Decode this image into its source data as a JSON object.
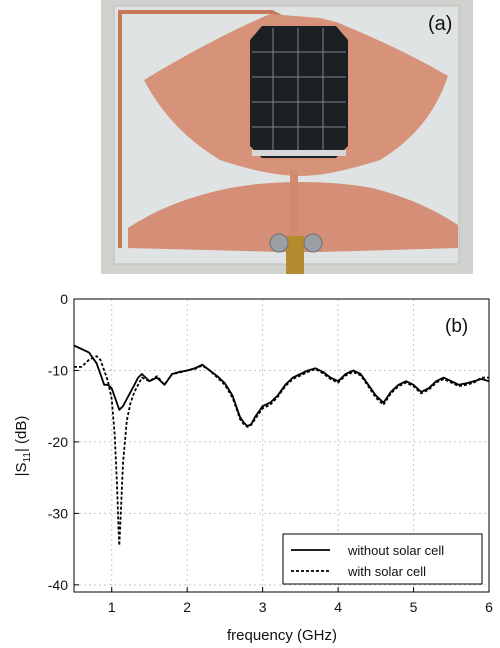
{
  "photo_panel": {
    "label": "(a)"
  },
  "chart_data": {
    "type": "line",
    "panel_label": "(b)",
    "xlabel": "frequency (GHz)",
    "ylabel": "|S",
    "ylabel_sub": "11",
    "ylabel_tail": "| (dB)",
    "xlim": [
      0.5,
      6
    ],
    "ylim": [
      -41,
      0
    ],
    "xticks": [
      1,
      2,
      3,
      4,
      5,
      6
    ],
    "yticks": [
      0,
      -10,
      -20,
      -30,
      -40
    ],
    "grid": true,
    "legend_position": "bottom-right",
    "series": [
      {
        "name": "without solar cell",
        "style": "solid",
        "x": [
          0.5,
          0.6,
          0.7,
          0.8,
          0.85,
          0.9,
          0.95,
          1.0,
          1.05,
          1.1,
          1.15,
          1.2,
          1.25,
          1.3,
          1.35,
          1.4,
          1.5,
          1.6,
          1.7,
          1.8,
          1.9,
          2.0,
          2.1,
          2.2,
          2.3,
          2.4,
          2.5,
          2.6,
          2.65,
          2.7,
          2.75,
          2.8,
          2.85,
          2.9,
          3.0,
          3.1,
          3.2,
          3.3,
          3.4,
          3.5,
          3.6,
          3.7,
          3.8,
          3.9,
          4.0,
          4.1,
          4.2,
          4.3,
          4.4,
          4.5,
          4.6,
          4.7,
          4.8,
          4.9,
          5.0,
          5.1,
          5.2,
          5.3,
          5.4,
          5.5,
          5.6,
          5.7,
          5.8,
          5.9,
          6.0
        ],
        "y": [
          -6.5,
          -7.0,
          -7.5,
          -9.0,
          -10.5,
          -12.0,
          -12.0,
          -12.5,
          -14.0,
          -15.5,
          -15.0,
          -14.0,
          -13.0,
          -12.0,
          -11.0,
          -10.5,
          -11.5,
          -11.0,
          -12.0,
          -10.5,
          -10.2,
          -10.0,
          -9.7,
          -9.2,
          -10.0,
          -10.8,
          -11.8,
          -13.5,
          -15.0,
          -16.5,
          -17.3,
          -17.8,
          -17.5,
          -16.5,
          -15.0,
          -14.5,
          -13.5,
          -12.0,
          -11.0,
          -10.5,
          -10.0,
          -9.7,
          -10.2,
          -11.0,
          -11.5,
          -10.5,
          -10.0,
          -10.5,
          -12.0,
          -13.5,
          -14.5,
          -13.0,
          -12.0,
          -11.5,
          -12.0,
          -13.0,
          -12.5,
          -11.5,
          -11.0,
          -11.5,
          -12.0,
          -11.8,
          -11.5,
          -11.2,
          -11.5
        ]
      },
      {
        "name": "with solar cell",
        "style": "dashed",
        "x": [
          0.5,
          0.6,
          0.7,
          0.8,
          0.85,
          0.9,
          0.95,
          1.0,
          1.04,
          1.07,
          1.09,
          1.1,
          1.12,
          1.15,
          1.2,
          1.25,
          1.3,
          1.35,
          1.4,
          1.5,
          1.6,
          1.7,
          1.8,
          1.9,
          2.0,
          2.1,
          2.2,
          2.3,
          2.4,
          2.5,
          2.6,
          2.65,
          2.7,
          2.75,
          2.8,
          2.85,
          2.9,
          3.0,
          3.1,
          3.2,
          3.3,
          3.4,
          3.5,
          3.6,
          3.7,
          3.8,
          3.9,
          4.0,
          4.1,
          4.2,
          4.3,
          4.4,
          4.5,
          4.6,
          4.7,
          4.8,
          4.9,
          5.0,
          5.1,
          5.2,
          5.3,
          5.4,
          5.5,
          5.6,
          5.7,
          5.8,
          5.9,
          6.0
        ],
        "y": [
          -9.5,
          -9.5,
          -8.5,
          -8.0,
          -8.5,
          -10.0,
          -11.5,
          -14.0,
          -19.0,
          -26.0,
          -32.0,
          -34.5,
          -30.0,
          -23.0,
          -17.0,
          -14.5,
          -13.0,
          -12.0,
          -11.0,
          -11.5,
          -10.8,
          -12.0,
          -10.5,
          -10.3,
          -10.0,
          -9.8,
          -9.3,
          -10.0,
          -11.0,
          -12.0,
          -13.8,
          -15.2,
          -16.8,
          -17.5,
          -17.9,
          -17.6,
          -16.8,
          -15.3,
          -14.8,
          -13.7,
          -12.2,
          -11.2,
          -10.7,
          -10.2,
          -9.8,
          -10.4,
          -11.2,
          -11.7,
          -10.7,
          -10.2,
          -10.7,
          -12.2,
          -13.8,
          -14.8,
          -13.2,
          -12.2,
          -11.7,
          -12.2,
          -13.2,
          -12.7,
          -11.7,
          -11.2,
          -11.7,
          -12.2,
          -12.0,
          -11.7,
          -11.0,
          -11.0
        ]
      }
    ]
  }
}
